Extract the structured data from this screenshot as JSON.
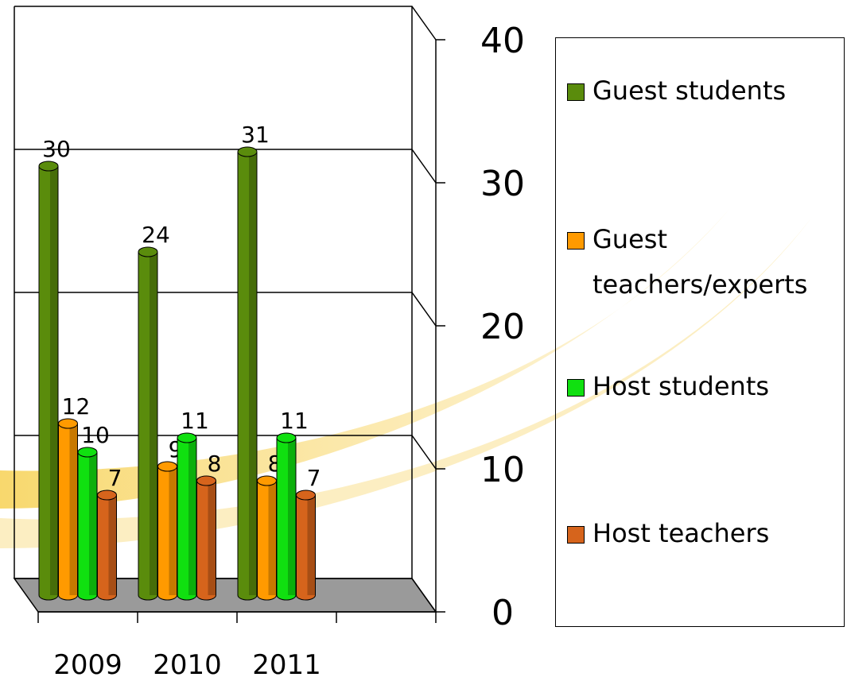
{
  "chart_data": {
    "type": "bar3d",
    "categories": [
      "2009",
      "2010",
      "2011",
      null
    ],
    "series": [
      {
        "name": "Guest students",
        "color": "#5a8c0c",
        "values": [
          30,
          24,
          31,
          null
        ]
      },
      {
        "name": "Guest teachers/experts",
        "color": "#ff9a00",
        "values": [
          12,
          9,
          8,
          null
        ]
      },
      {
        "name": "Host students",
        "color": "#10e010",
        "values": [
          10,
          11,
          11,
          null
        ]
      },
      {
        "name": "Host teachers",
        "color": "#d6641c",
        "values": [
          7,
          8,
          7,
          null
        ]
      }
    ],
    "ylim": [
      0,
      40
    ],
    "yticks": [
      0,
      10,
      20,
      30,
      40
    ],
    "grid": true,
    "legend": "right"
  }
}
